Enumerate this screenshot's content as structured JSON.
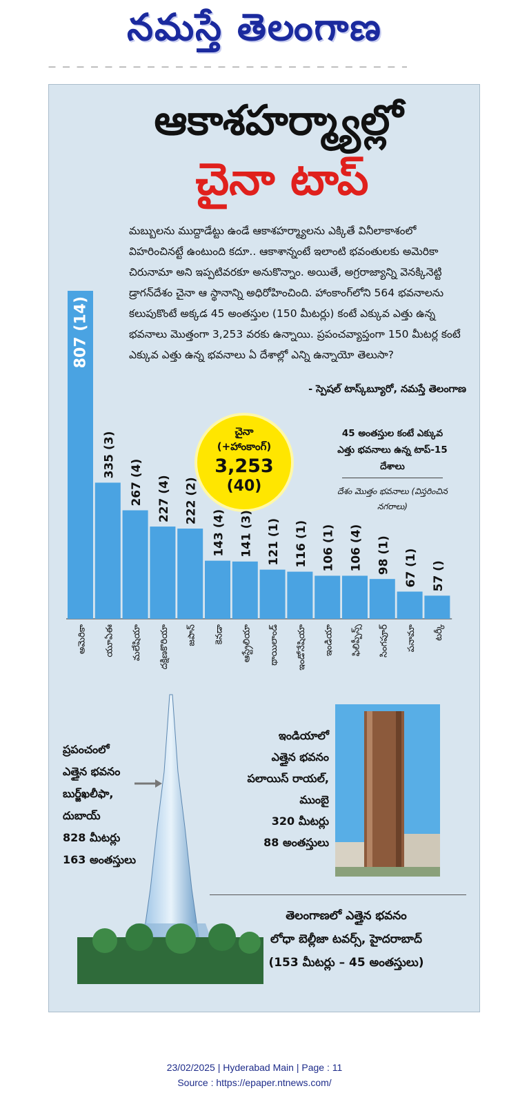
{
  "masthead": "నమస్తే తెలంగాణ",
  "headline": {
    "line1": "ఆకాశహర్మ్యాల్లో",
    "line2": "చైనా టాప్"
  },
  "intro": "మబ్బులను ముద్దాడేట్టు ఉండే ఆకాశహర్మ్యాలను ఎక్కితే వినీలాకాశంలో విహరించినట్టే ఉంటుంది కదూ.. ఆకాశాన్నంటే ఇలాంటి భవంతులకు అమెరికా చిరునామా అని ఇప్పటివరకూ అనుకొన్నాం. అయితే, అగ్రరాజ్యాన్ని వెనక్కినెట్టి డ్రాగన్‌దేశం చైనా ఆ స్థానాన్ని అధిరోహించింది. హాంకాంగ్‌లోని 564 భవనాలను కలుపుకొంటే అక్కడ 45 అంతస్తుల (150 మీటర్లు) కంటే ఎక్కువ ఎత్తు ఉన్న భవనాలు మొత్తంగా 3,253 వరకు ఉన్నాయి. ప్రపంచవ్యాప్తంగా 150 మీటర్ల కంటే ఎక్కువ ఎత్తు ఉన్న భవనాలు ఏ దేశాల్లో ఎన్ని ఉన్నాయో తెలుసా?",
  "byline": "- స్పెషల్ టాస్క్‌బ్యూరో, నమస్తే తెలంగాణ",
  "china": {
    "name": "చైనా",
    "sub": "(+హాంకాంగ్)",
    "total": "3,253",
    "cities": "(40)"
  },
  "legend": {
    "title": "45 అంతస్తుల కంటే ఎక్కువ ఎత్తు భవనాలు ఉన్న టాప్-15 దేశాలు",
    "note": "దేశం మొత్తం భవనాలు (విస్తరించిన నగరాలు)"
  },
  "chart_data": {
    "type": "bar",
    "title": "45 అంతస్తుల కంటే ఎక్కువ ఎత్తు భవనాలు ఉన్న టాప్-15 దేశాలు",
    "categories": [
      "అమెరికా",
      "యూఏఈ",
      "మలేషియా",
      "దక్షిణకొరియా",
      "జపాన్",
      "కెనడా",
      "ఆస్ట్రేలియా",
      "థాయిలాండ్",
      "ఇండోనేషియా",
      "ఇండియా",
      "ఫిలిప్పీన్స్",
      "సింగపూర్",
      "పనామా",
      "టర్కీ"
    ],
    "values": [
      807,
      335,
      267,
      227,
      222,
      143,
      141,
      121,
      116,
      106,
      106,
      98,
      67,
      57
    ],
    "labels": [
      "807 (14)",
      "335 (3)",
      "267 (4)",
      "227 (4)",
      "222 (2)",
      "143 (4)",
      "141 (3)",
      "121 (1)",
      "116 (1)",
      "106 (1)",
      "106 (4)",
      "98 (1)",
      "67 (1)",
      "57 ()"
    ],
    "ylim": [
      0,
      807
    ],
    "grid": false,
    "bar_color": "#4aa3e2"
  },
  "world_tallest": {
    "heading": "ప్రపంచంలో",
    "line2": "ఎత్తైన భవనం",
    "name": "బుర్జ్‌ఖలీఫా,",
    "city": "దుబాయ్",
    "height": "828 మీటర్లు",
    "floors": "163 అంతస్తులు"
  },
  "india_tallest": {
    "heading": "ఇండియాలో",
    "line2": "ఎత్తైన భవనం",
    "name": "పలాయిస్ రాయల్,",
    "city": "ముంబై",
    "height": "320 మీటర్లు",
    "floors": "88 అంతస్తులు"
  },
  "telangana_tallest": {
    "line1": "తెలంగాణలో ఎత్తైన భవనం",
    "line2": "లోధా బెల్లీజా టవర్స్, హైదరాబాద్",
    "line3": "(153 మీటర్లు – 45 అంతస్తులు)"
  },
  "footer": {
    "line1": "23/02/2025 | Hyderabad Main | Page : 11",
    "line2": "Source : https://epaper.ntnews.com/"
  }
}
